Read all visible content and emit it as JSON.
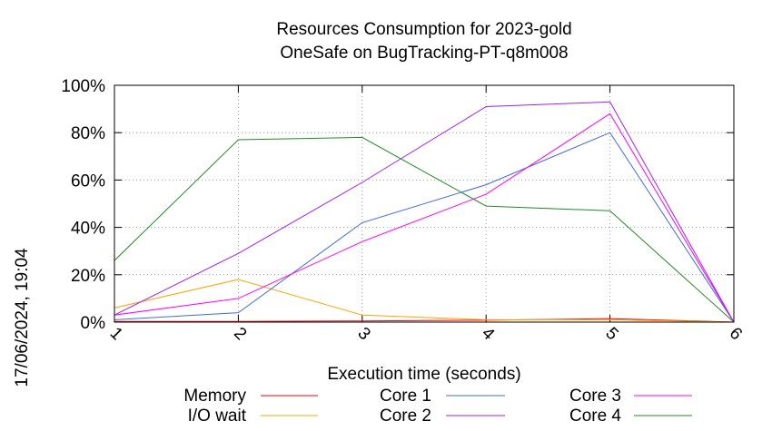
{
  "timestamp": "17/06/2024, 19:04",
  "chart_data": {
    "type": "line",
    "title_lines": [
      "Resources Consumption for 2023-gold",
      "OneSafe on BugTracking-PT-q8m008"
    ],
    "xlabel": "Execution time (seconds)",
    "ylabel": "",
    "x": [
      1,
      2,
      3,
      4,
      5,
      6
    ],
    "x_tick_labels": [
      "1",
      "2",
      "3",
      "4",
      "5",
      "6"
    ],
    "xlim": [
      1,
      6
    ],
    "ylim": [
      0,
      100
    ],
    "y_ticks": [
      0,
      20,
      40,
      60,
      80,
      100
    ],
    "y_tick_labels": [
      "0%",
      "20%",
      "40%",
      "60%",
      "80%",
      "100%"
    ],
    "grid": true,
    "legend_position": "bottom",
    "series": [
      {
        "name": "Memory",
        "color": "#ff0000",
        "values": [
          0.3,
          0.3,
          0.5,
          0.8,
          1.5,
          0
        ]
      },
      {
        "name": "I/O wait",
        "color": "#ffa500",
        "values": [
          6,
          18,
          3,
          1,
          1,
          0
        ]
      },
      {
        "name": "Core 1",
        "color": "#4169e1",
        "values": [
          1,
          4,
          42,
          58,
          80,
          0
        ]
      },
      {
        "name": "Core 2",
        "color": "#a020f0",
        "values": [
          3,
          29,
          59,
          91,
          93,
          0
        ]
      },
      {
        "name": "Core 3",
        "color": "#ff00ff",
        "values": [
          3,
          10,
          34,
          54,
          88,
          0
        ]
      },
      {
        "name": "Core 4",
        "color": "#228b22",
        "values": [
          26,
          77,
          78,
          49,
          47,
          0
        ]
      }
    ]
  }
}
